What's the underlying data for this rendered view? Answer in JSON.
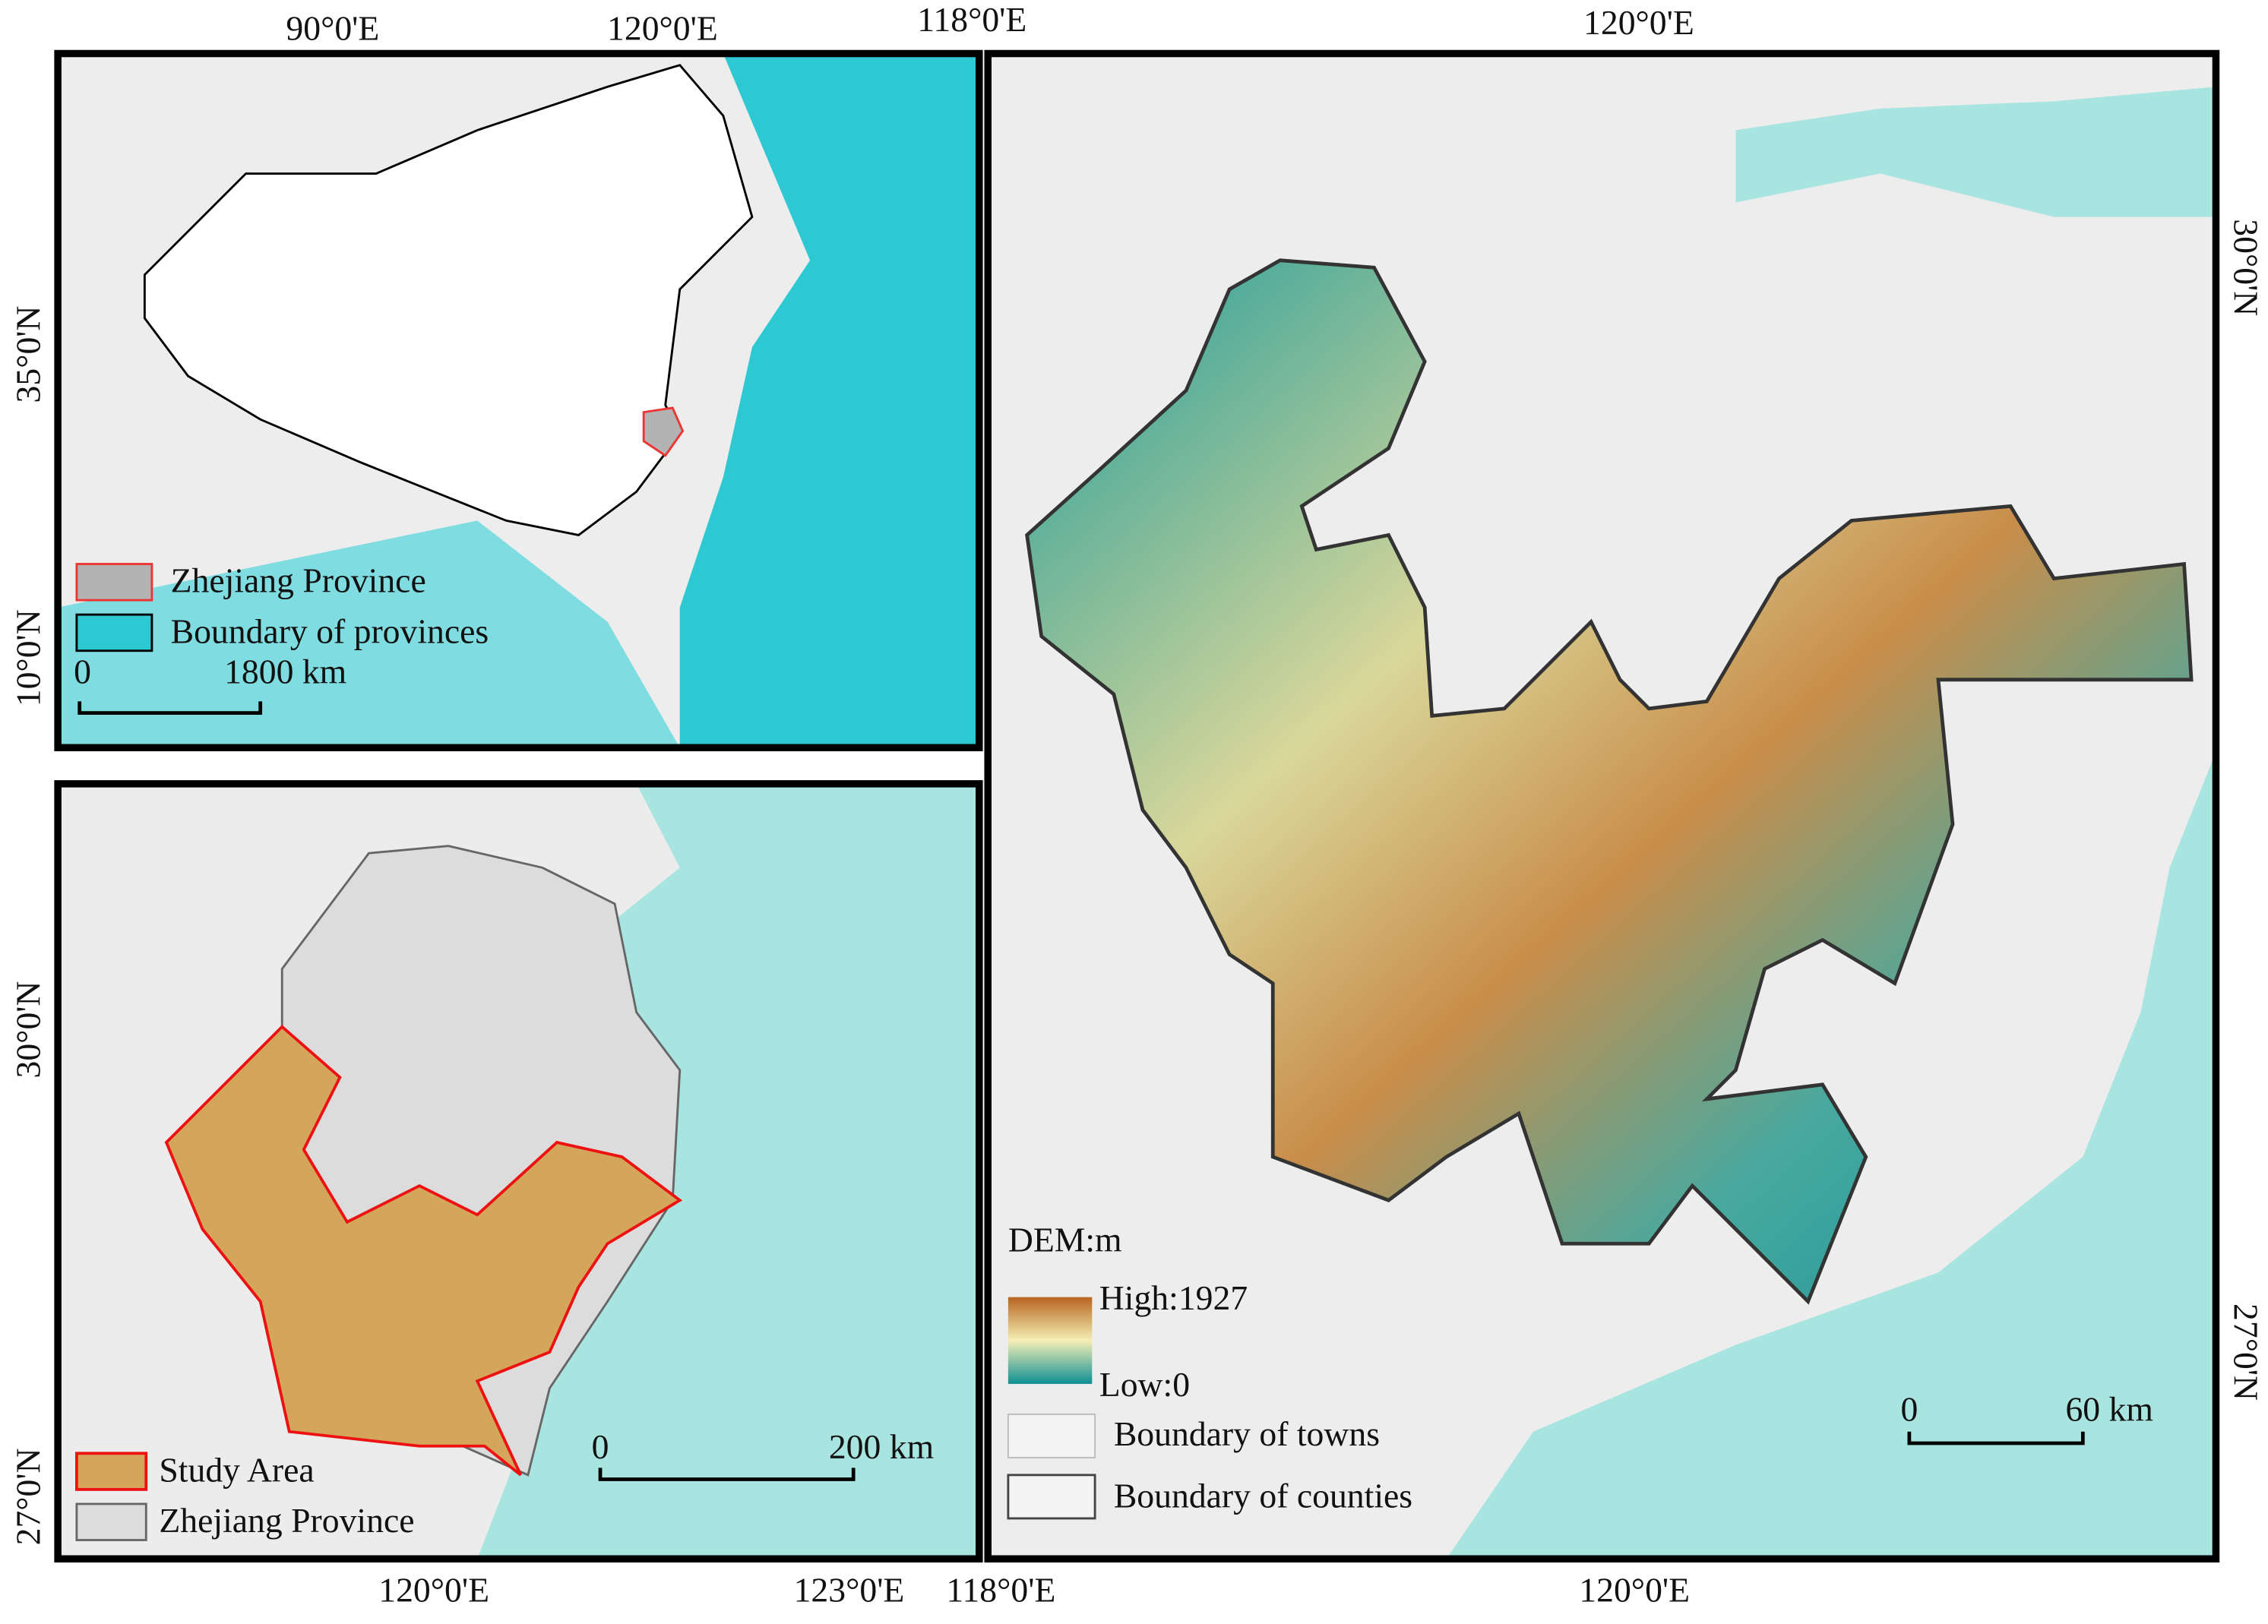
{
  "china_map": {
    "top_ticks": [
      "90°0'E",
      "120°0'E"
    ],
    "left_ticks": [
      "35°0'N",
      "10°0'N"
    ],
    "legend": [
      "Zhejiang Province",
      "Boundary of provinces"
    ],
    "scale": [
      "0",
      "1800 km"
    ]
  },
  "zhejiang_map": {
    "left_ticks": [
      "30°0'N",
      "27°0'N"
    ],
    "bottom_ticks": [
      "120°0'E",
      "123°0'E"
    ],
    "legend": [
      "Study Area",
      "Zhejiang Province"
    ],
    "scale": [
      "0",
      "200 km"
    ]
  },
  "study_area_map": {
    "top_ticks": [
      "118°0'E",
      "120°0'E"
    ],
    "right_ticks": [
      "30°0'N",
      "27°0'N"
    ],
    "bottom_ticks": [
      "118°0'E",
      "120°0'E"
    ],
    "legend_title": "DEM:m",
    "dem_high": "High:1927",
    "dem_low": "Low:0",
    "legend": [
      "Boundary of towns",
      "Boundary of counties"
    ],
    "scale": [
      "0",
      "60 km"
    ]
  }
}
